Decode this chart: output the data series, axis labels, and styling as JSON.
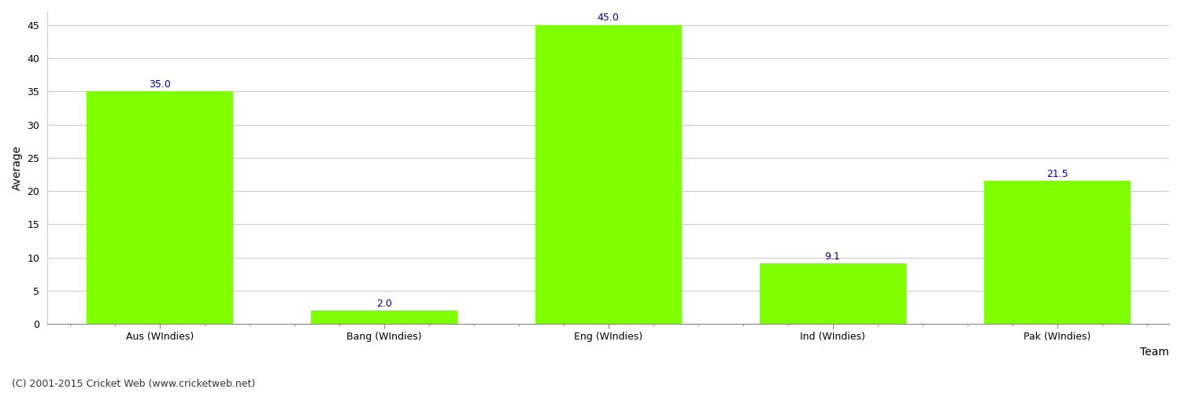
{
  "categories": [
    "Aus (WIndies)",
    "Bang (WIndies)",
    "Eng (WIndies)",
    "Ind (WIndies)",
    "Pak (WIndies)"
  ],
  "values": [
    35.0,
    2.0,
    45.0,
    9.1,
    21.5
  ],
  "bar_color": "#7FFF00",
  "bar_edge_color": "#7FFF00",
  "label_color": "#00008B",
  "xlabel": "Team",
  "ylabel": "Average",
  "ylim": [
    0,
    47
  ],
  "yticks": [
    0,
    5,
    10,
    15,
    20,
    25,
    30,
    35,
    40,
    45
  ],
  "background_color": "#ffffff",
  "grid_color": "#cccccc",
  "footer_text": "(C) 2001-2015 Cricket Web (www.cricketweb.net)",
  "label_fontsize": 9,
  "axis_fontsize": 10,
  "footer_fontsize": 9,
  "bar_width": 0.65
}
